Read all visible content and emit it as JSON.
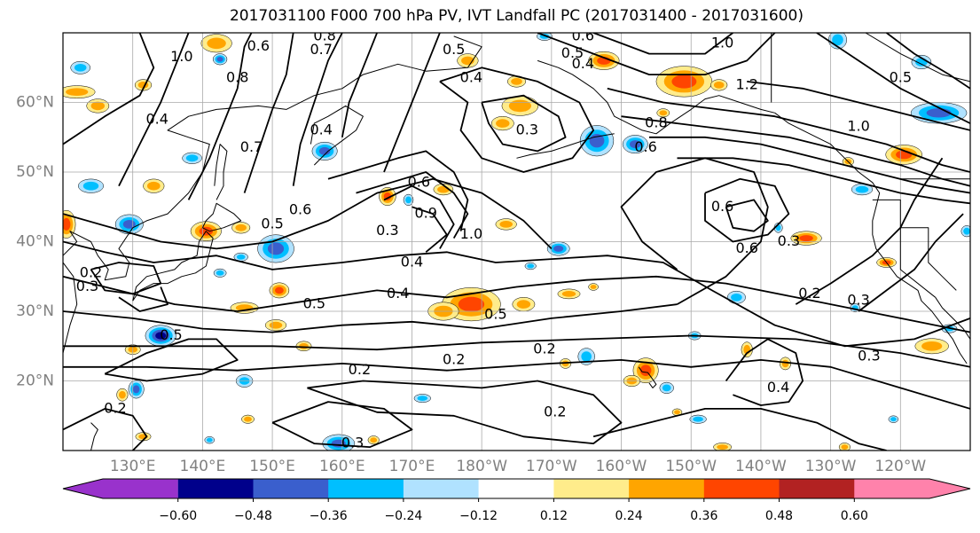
{
  "title": "2017031100 F000 700 hPa PV, IVT Landfall PC (2017031400 - 2017031600)",
  "axes": {
    "latitude_ticks": [
      "20°N",
      "30°N",
      "40°N",
      "50°N",
      "60°N"
    ],
    "longitude_ticks": [
      "130°E",
      "140°E",
      "150°E",
      "160°E",
      "170°E",
      "180°W",
      "170°W",
      "160°W",
      "150°W",
      "140°W",
      "130°W",
      "120°W"
    ]
  },
  "map_data": {
    "extent": {
      "lon_min": 120,
      "lon_max": 250,
      "lat_min": 10,
      "lat_max": 70
    },
    "contour_variable": "700 hPa PV",
    "shaded_variable": "IVT Landfall PC",
    "contour_labels": [
      {
        "text": "0.6",
        "lon": 148,
        "lat": 68
      },
      {
        "text": "0.8",
        "lon": 157.5,
        "lat": 69.5
      },
      {
        "text": "0.7",
        "lon": 157,
        "lat": 67.5
      },
      {
        "text": "1.0",
        "lon": 137,
        "lat": 66.5
      },
      {
        "text": "0.8",
        "lon": 145,
        "lat": 63.5
      },
      {
        "text": "0.4",
        "lon": 133.5,
        "lat": 57.5
      },
      {
        "text": "0.7",
        "lon": 147,
        "lat": 53.5
      },
      {
        "text": "0.4",
        "lon": 157,
        "lat": 56
      },
      {
        "text": "0.6",
        "lon": 154,
        "lat": 44.5
      },
      {
        "text": "0.5",
        "lon": 150,
        "lat": 42.5
      },
      {
        "text": "0.5",
        "lon": 176,
        "lat": 67.5
      },
      {
        "text": "0.4",
        "lon": 178.5,
        "lat": 63.5
      },
      {
        "text": "0.6",
        "lon": 194.5,
        "lat": 69.5
      },
      {
        "text": "0.5",
        "lon": 193,
        "lat": 67
      },
      {
        "text": "0.4",
        "lon": 194.5,
        "lat": 65.5
      },
      {
        "text": "0.3",
        "lon": 186.5,
        "lat": 56
      },
      {
        "text": "0.6",
        "lon": 171,
        "lat": 48.5
      },
      {
        "text": "0.9",
        "lon": 172,
        "lat": 44
      },
      {
        "text": "1.0",
        "lon": 178.5,
        "lat": 41
      },
      {
        "text": "0.3",
        "lon": 166.5,
        "lat": 41.5
      },
      {
        "text": "0.4",
        "lon": 170,
        "lat": 37
      },
      {
        "text": "0.4",
        "lon": 168,
        "lat": 32.5
      },
      {
        "text": "0.5",
        "lon": 156,
        "lat": 31
      },
      {
        "text": "0.5",
        "lon": 182,
        "lat": 29.5
      },
      {
        "text": "0.2",
        "lon": 162.5,
        "lat": 21.5
      },
      {
        "text": "0.2",
        "lon": 176,
        "lat": 23
      },
      {
        "text": "0.2",
        "lon": 189,
        "lat": 24.5
      },
      {
        "text": "0.2",
        "lon": 190.5,
        "lat": 15.5
      },
      {
        "text": "0.3",
        "lon": 161.5,
        "lat": 11
      },
      {
        "text": "0.2",
        "lon": 127.5,
        "lat": 16
      },
      {
        "text": "0.5",
        "lon": 135.5,
        "lat": 26.5
      },
      {
        "text": "0.2",
        "lon": 124,
        "lat": 35.5
      },
      {
        "text": "0.3",
        "lon": 123.5,
        "lat": 33.5
      },
      {
        "text": "1.0",
        "lon": 214.5,
        "lat": 68.5
      },
      {
        "text": "1.2",
        "lon": 218,
        "lat": 62.5
      },
      {
        "text": "0.8",
        "lon": 205,
        "lat": 57
      },
      {
        "text": "0.6",
        "lon": 203.5,
        "lat": 53.5
      },
      {
        "text": "0.6",
        "lon": 214.5,
        "lat": 45
      },
      {
        "text": "0.6",
        "lon": 218,
        "lat": 39
      },
      {
        "text": "0.3",
        "lon": 224,
        "lat": 40
      },
      {
        "text": "0.2",
        "lon": 227,
        "lat": 32.5
      },
      {
        "text": "0.4",
        "lon": 222.5,
        "lat": 19
      },
      {
        "text": "1.0",
        "lon": 234,
        "lat": 56.5
      },
      {
        "text": "0.5",
        "lon": 240,
        "lat": 63.5
      },
      {
        "text": "0.3",
        "lon": 234,
        "lat": 31.5
      },
      {
        "text": "0.3",
        "lon": 235.5,
        "lat": 23.5
      }
    ],
    "shaded_regions": [
      {
        "lon": 142,
        "lat": 68.5,
        "rx": 2.2,
        "ry": 1.3,
        "value": 0.3
      },
      {
        "lon": 142.5,
        "lat": 66.2,
        "rx": 1,
        "ry": 0.8,
        "value": -0.4
      },
      {
        "lon": 122.5,
        "lat": 65,
        "rx": 1.4,
        "ry": 0.9,
        "value": -0.3
      },
      {
        "lon": 125,
        "lat": 59.5,
        "rx": 1.6,
        "ry": 1,
        "value": 0.3
      },
      {
        "lon": 122,
        "lat": 61.5,
        "rx": 2.6,
        "ry": 0.9,
        "value": 0.28
      },
      {
        "lon": 131.5,
        "lat": 62.5,
        "rx": 1.2,
        "ry": 0.8,
        "value": 0.25
      },
      {
        "lon": 124,
        "lat": 48,
        "rx": 1.8,
        "ry": 1,
        "value": -0.3
      },
      {
        "lon": 133,
        "lat": 48,
        "rx": 1.5,
        "ry": 1,
        "value": 0.3
      },
      {
        "lon": 138.5,
        "lat": 52,
        "rx": 1.4,
        "ry": 0.8,
        "value": -0.3
      },
      {
        "lon": 120.5,
        "lat": 42.5,
        "rx": 1.3,
        "ry": 2,
        "value": 0.4
      },
      {
        "lon": 129.5,
        "lat": 42.5,
        "rx": 2,
        "ry": 1.4,
        "value": -0.42
      },
      {
        "lon": 140.5,
        "lat": 41.5,
        "rx": 2.2,
        "ry": 1.4,
        "value": 0.42
      },
      {
        "lon": 145.5,
        "lat": 42,
        "rx": 1.3,
        "ry": 0.8,
        "value": 0.3
      },
      {
        "lon": 150.5,
        "lat": 39,
        "rx": 2.6,
        "ry": 2,
        "value": -0.42
      },
      {
        "lon": 145.5,
        "lat": 37.8,
        "rx": 1,
        "ry": 0.6,
        "value": -0.3
      },
      {
        "lon": 142.5,
        "lat": 35.5,
        "rx": 0.9,
        "ry": 0.6,
        "value": -0.25
      },
      {
        "lon": 151,
        "lat": 33,
        "rx": 1.4,
        "ry": 1.1,
        "value": 0.38
      },
      {
        "lon": 146,
        "lat": 30.5,
        "rx": 2,
        "ry": 0.8,
        "value": 0.28
      },
      {
        "lon": 134,
        "lat": 26.5,
        "rx": 2.2,
        "ry": 1.5,
        "value": -0.5
      },
      {
        "lon": 130,
        "lat": 24.5,
        "rx": 1.1,
        "ry": 0.7,
        "value": 0.28
      },
      {
        "lon": 150.5,
        "lat": 28,
        "rx": 1.5,
        "ry": 0.8,
        "value": 0.3
      },
      {
        "lon": 154.5,
        "lat": 25,
        "rx": 1.1,
        "ry": 0.7,
        "value": 0.28
      },
      {
        "lon": 146,
        "lat": 20,
        "rx": 1.2,
        "ry": 0.9,
        "value": -0.3
      },
      {
        "lon": 130.5,
        "lat": 18.8,
        "rx": 1.1,
        "ry": 1.3,
        "value": -0.4
      },
      {
        "lon": 128.5,
        "lat": 18,
        "rx": 0.8,
        "ry": 0.9,
        "value": 0.28
      },
      {
        "lon": 146.5,
        "lat": 14.5,
        "rx": 0.9,
        "ry": 0.6,
        "value": 0.25
      },
      {
        "lon": 141,
        "lat": 11.5,
        "rx": 0.7,
        "ry": 0.5,
        "value": -0.25
      },
      {
        "lon": 131.5,
        "lat": 12,
        "rx": 1.1,
        "ry": 0.6,
        "value": 0.28
      },
      {
        "lon": 159.5,
        "lat": 11,
        "rx": 2.3,
        "ry": 1.3,
        "value": -0.42
      },
      {
        "lon": 164.5,
        "lat": 11.5,
        "rx": 0.8,
        "ry": 0.6,
        "value": 0.3
      },
      {
        "lon": 157.5,
        "lat": 53,
        "rx": 1.8,
        "ry": 1.3,
        "value": -0.4
      },
      {
        "lon": 166.5,
        "lat": 46.5,
        "rx": 1.2,
        "ry": 1.3,
        "value": 0.38
      },
      {
        "lon": 169.5,
        "lat": 46,
        "rx": 0.7,
        "ry": 0.8,
        "value": -0.3
      },
      {
        "lon": 174.5,
        "lat": 47.5,
        "rx": 1.4,
        "ry": 0.8,
        "value": 0.3
      },
      {
        "lon": 178,
        "lat": 66,
        "rx": 1.5,
        "ry": 1,
        "value": 0.3
      },
      {
        "lon": 185.5,
        "lat": 59.5,
        "rx": 2.6,
        "ry": 1.4,
        "value": 0.3
      },
      {
        "lon": 183,
        "lat": 57,
        "rx": 1.6,
        "ry": 1,
        "value": 0.28
      },
      {
        "lon": 185,
        "lat": 63,
        "rx": 1.3,
        "ry": 0.8,
        "value": 0.25
      },
      {
        "lon": 183.5,
        "lat": 42.5,
        "rx": 1.5,
        "ry": 0.8,
        "value": 0.28
      },
      {
        "lon": 191,
        "lat": 39,
        "rx": 1.6,
        "ry": 1,
        "value": -0.4
      },
      {
        "lon": 187,
        "lat": 36.5,
        "rx": 0.8,
        "ry": 0.5,
        "value": -0.25
      },
      {
        "lon": 197.5,
        "lat": 66,
        "rx": 2.2,
        "ry": 1.3,
        "value": 0.42
      },
      {
        "lon": 196.5,
        "lat": 54.5,
        "rx": 2.4,
        "ry": 2.2,
        "value": -0.42
      },
      {
        "lon": 202,
        "lat": 54,
        "rx": 1.8,
        "ry": 1.3,
        "value": -0.4
      },
      {
        "lon": 209,
        "lat": 63,
        "rx": 4,
        "ry": 2.2,
        "value": 0.42
      },
      {
        "lon": 214,
        "lat": 62.5,
        "rx": 1.2,
        "ry": 0.8,
        "value": 0.3
      },
      {
        "lon": 206,
        "lat": 58.5,
        "rx": 0.9,
        "ry": 0.6,
        "value": 0.28
      },
      {
        "lon": 189,
        "lat": 69.5,
        "rx": 1.1,
        "ry": 0.6,
        "value": -0.3
      },
      {
        "lon": 186,
        "lat": 31,
        "rx": 1.6,
        "ry": 1,
        "value": 0.3
      },
      {
        "lon": 178.5,
        "lat": 31,
        "rx": 4.2,
        "ry": 2.4,
        "value": 0.42
      },
      {
        "lon": 174.5,
        "lat": 30,
        "rx": 2.2,
        "ry": 1.3,
        "value": 0.3
      },
      {
        "lon": 192.5,
        "lat": 32.5,
        "rx": 1.6,
        "ry": 0.7,
        "value": 0.3
      },
      {
        "lon": 196,
        "lat": 33.5,
        "rx": 0.7,
        "ry": 0.5,
        "value": 0.28
      },
      {
        "lon": 195,
        "lat": 23.5,
        "rx": 1.2,
        "ry": 1.2,
        "value": -0.3
      },
      {
        "lon": 192,
        "lat": 22.5,
        "rx": 0.8,
        "ry": 0.7,
        "value": 0.28
      },
      {
        "lon": 203.5,
        "lat": 21.5,
        "rx": 1.8,
        "ry": 1.8,
        "value": 0.45
      },
      {
        "lon": 201.5,
        "lat": 20,
        "rx": 1.2,
        "ry": 0.8,
        "value": 0.25
      },
      {
        "lon": 206.5,
        "lat": 19,
        "rx": 1,
        "ry": 0.8,
        "value": -0.3
      },
      {
        "lon": 171.5,
        "lat": 17.5,
        "rx": 1.2,
        "ry": 0.6,
        "value": -0.3
      },
      {
        "lon": 208,
        "lat": 15.5,
        "rx": 0.7,
        "ry": 0.5,
        "value": 0.28
      },
      {
        "lon": 211,
        "lat": 14.5,
        "rx": 1.2,
        "ry": 0.6,
        "value": -0.3
      },
      {
        "lon": 214.5,
        "lat": 10.5,
        "rx": 1.3,
        "ry": 0.6,
        "value": 0.35
      },
      {
        "lon": 210.5,
        "lat": 26.5,
        "rx": 0.9,
        "ry": 0.6,
        "value": -0.3
      },
      {
        "lon": 216.5,
        "lat": 32,
        "rx": 1.3,
        "ry": 0.9,
        "value": -0.3
      },
      {
        "lon": 223.5,
        "lat": 22.5,
        "rx": 0.8,
        "ry": 0.9,
        "value": 0.3
      },
      {
        "lon": 218,
        "lat": 24.5,
        "rx": 0.8,
        "ry": 1.1,
        "value": 0.3
      },
      {
        "lon": 222.5,
        "lat": 42,
        "rx": 0.6,
        "ry": 0.7,
        "value": -0.25
      },
      {
        "lon": 226.5,
        "lat": 40.5,
        "rx": 2.2,
        "ry": 1,
        "value": 0.42
      },
      {
        "lon": 240.5,
        "lat": 52.5,
        "rx": 2.6,
        "ry": 1.4,
        "value": 0.42
      },
      {
        "lon": 245.5,
        "lat": 58.5,
        "rx": 4,
        "ry": 1.5,
        "value": -0.42
      },
      {
        "lon": 243,
        "lat": 65.8,
        "rx": 1.4,
        "ry": 1,
        "value": -0.3
      },
      {
        "lon": 231,
        "lat": 69,
        "rx": 1.3,
        "ry": 1.3,
        "value": -0.3
      },
      {
        "lon": 232.5,
        "lat": 51.5,
        "rx": 0.8,
        "ry": 0.6,
        "value": 0.3
      },
      {
        "lon": 234.5,
        "lat": 47.5,
        "rx": 1.5,
        "ry": 0.8,
        "value": -0.3
      },
      {
        "lon": 238,
        "lat": 37,
        "rx": 1.4,
        "ry": 0.7,
        "value": 0.38
      },
      {
        "lon": 244.5,
        "lat": 25,
        "rx": 2.4,
        "ry": 1.1,
        "value": 0.35
      },
      {
        "lon": 247,
        "lat": 27.5,
        "rx": 1.1,
        "ry": 0.6,
        "value": -0.3
      },
      {
        "lon": 233.5,
        "lat": 30.5,
        "rx": 0.7,
        "ry": 0.6,
        "value": -0.3
      },
      {
        "lon": 249.5,
        "lat": 41.5,
        "rx": 0.8,
        "ry": 0.8,
        "value": -0.3
      },
      {
        "lon": 239,
        "lat": 14.5,
        "rx": 0.7,
        "ry": 0.5,
        "value": -0.3
      },
      {
        "lon": 232,
        "lat": 10.5,
        "rx": 0.8,
        "ry": 0.6,
        "value": 0.28
      }
    ]
  },
  "colorbar": {
    "tick_labels": [
      "−0.60",
      "−0.48",
      "−0.36",
      "−0.24",
      "−0.12",
      "0.12",
      "0.24",
      "0.36",
      "0.48",
      "0.60"
    ],
    "levels": [
      -0.6,
      -0.48,
      -0.36,
      -0.24,
      -0.12,
      0.12,
      0.24,
      0.36,
      0.48,
      0.6
    ],
    "colors": [
      "#9932cc",
      "#00008b",
      "#3a5fcd",
      "#00bfff",
      "#b0e2ff",
      "#ffffff",
      "#ffec8b",
      "#ffa500",
      "#ff4500",
      "#b22222",
      "#ff82ab"
    ]
  }
}
